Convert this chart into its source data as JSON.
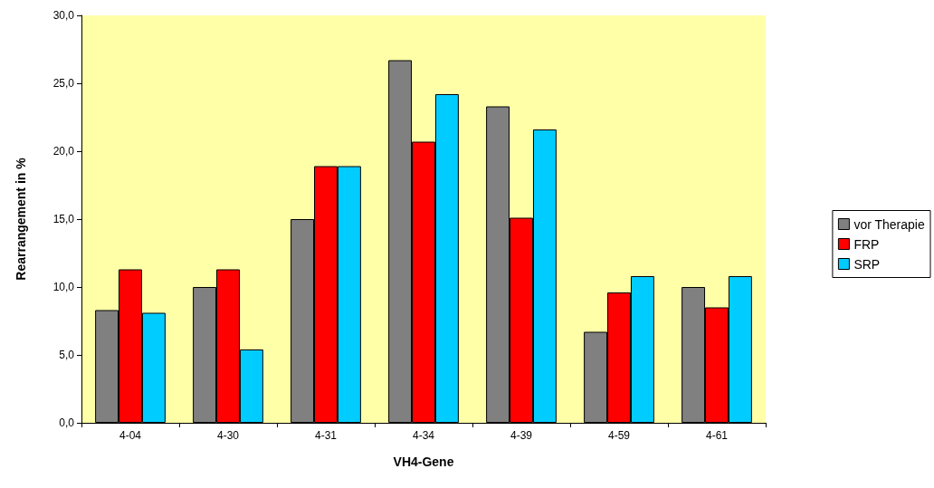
{
  "chart_data": {
    "type": "bar",
    "xlabel": "VH4-Gene",
    "ylabel": "Rearrangement in %",
    "categories": [
      "4-04",
      "4-30",
      "4-31",
      "4-34",
      "4-39",
      "4-59",
      "4-61"
    ],
    "series": [
      {
        "name": "vor Therapie",
        "color": "#808080",
        "values": [
          8.3,
          10.0,
          15.0,
          26.7,
          23.3,
          6.7,
          10.0
        ]
      },
      {
        "name": "FRP",
        "color": "#ff0000",
        "values": [
          11.3,
          11.3,
          18.9,
          20.7,
          15.1,
          9.6,
          8.5
        ]
      },
      {
        "name": "SRP",
        "color": "#00ccff",
        "values": [
          8.1,
          5.4,
          18.9,
          24.2,
          21.6,
          10.8,
          10.8
        ]
      }
    ],
    "ylim": [
      0,
      30
    ],
    "yticks": [
      {
        "value": 0,
        "label": "0,0"
      },
      {
        "value": 5,
        "label": "5,0"
      },
      {
        "value": 10,
        "label": "10,0"
      },
      {
        "value": 15,
        "label": "15,0"
      },
      {
        "value": 20,
        "label": "20,0"
      },
      {
        "value": 25,
        "label": "25,0"
      },
      {
        "value": 30,
        "label": "30,0"
      }
    ],
    "grid": false,
    "legend": "right"
  }
}
